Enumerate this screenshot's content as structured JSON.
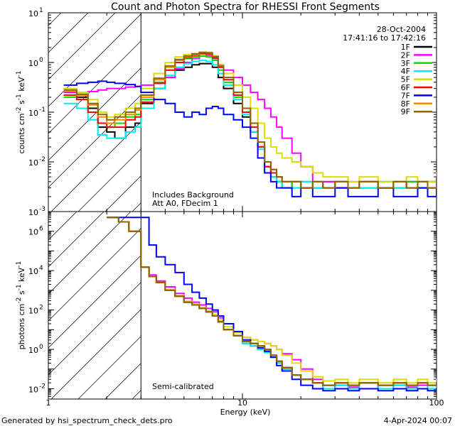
{
  "title": "Count and Photon Spectra for RHESSI Front Segments",
  "footer": {
    "left": "Generated by hsi_spectrum_check_dets.pro",
    "right": "4-Apr-2024 00:07"
  },
  "colors": {
    "1F": "#000000",
    "2F": "#ff00ff",
    "3F": "#00dd00",
    "4F": "#00eeee",
    "5F": "#dddd00",
    "6F": "#ff0000",
    "7F": "#0000ff",
    "8F": "#ff8800",
    "9F": "#886600"
  },
  "chart_data": [
    {
      "type": "line",
      "panel": "top",
      "title": "Count and Photon Spectra for RHESSI Front Segments",
      "xlabel": "Energy (keV)",
      "ylabel": "counts cm⁻² s⁻¹ keV⁻¹",
      "ylabel_parts": [
        "counts cm",
        "-2",
        " s",
        "-1",
        " keV",
        "-1"
      ],
      "xscale": "log",
      "yscale": "log",
      "xlim": [
        1,
        100
      ],
      "ylim": [
        0.001,
        10
      ],
      "yticks": [
        {
          "v": 10,
          "mant": "10",
          "exp": "1"
        },
        {
          "v": 1,
          "mant": "10",
          "exp": "0"
        },
        {
          "v": 0.1,
          "mant": "10",
          "exp": "-1"
        },
        {
          "v": 0.01,
          "mant": "10",
          "exp": "-2"
        },
        {
          "v": 0.001,
          "mant": "10",
          "exp": "-3"
        }
      ],
      "date": "28-Oct-2004",
      "time_range": "17:41:16 to 17:42:16",
      "annotations": [
        "Includes Background",
        "Att A0, FDecim  1"
      ],
      "hatched_below_keV": 3,
      "x": [
        1.2,
        1.4,
        1.6,
        1.8,
        2.0,
        2.2,
        2.5,
        2.8,
        3.0,
        3.5,
        4.0,
        4.5,
        5.0,
        5.5,
        6.0,
        6.5,
        7.0,
        7.5,
        8.0,
        9.0,
        10,
        11,
        12,
        13,
        14,
        15,
        16,
        18,
        20,
        23,
        26,
        30,
        35,
        40,
        50,
        60,
        70,
        80,
        90,
        100
      ],
      "series": [
        {
          "name": "1F",
          "values": [
            0.25,
            0.2,
            0.12,
            0.05,
            0.04,
            0.03,
            0.05,
            0.06,
            0.15,
            0.3,
            0.5,
            0.7,
            0.8,
            0.9,
            0.95,
            0.95,
            0.8,
            0.5,
            0.3,
            0.15,
            0.08,
            0.04,
            0.02,
            0.008,
            0.005,
            0.004,
            0.003,
            0.004,
            0.003,
            0.003,
            0.004,
            0.003,
            0.003,
            0.004,
            0.003,
            0.003,
            0.004,
            0.003,
            0.004,
            0.004
          ]
        },
        {
          "name": "2F",
          "values": [
            0.25,
            0.25,
            0.26,
            0.28,
            0.3,
            0.3,
            0.32,
            0.33,
            0.35,
            0.38,
            0.5,
            0.75,
            1.0,
            1.2,
            1.35,
            1.4,
            1.2,
            0.9,
            0.7,
            0.5,
            0.35,
            0.25,
            0.18,
            0.12,
            0.08,
            0.05,
            0.03,
            0.015,
            0.008,
            0.004,
            0.004,
            0.003,
            0.004,
            0.003,
            0.003,
            0.004,
            0.003,
            0.004,
            0.003,
            0.004
          ]
        },
        {
          "name": "3F",
          "values": [
            0.2,
            0.18,
            0.1,
            0.06,
            0.05,
            0.06,
            0.08,
            0.09,
            0.18,
            0.4,
            0.7,
            1.0,
            1.2,
            1.3,
            1.35,
            1.3,
            1.1,
            0.7,
            0.4,
            0.2,
            0.1,
            0.05,
            0.02,
            0.008,
            0.005,
            0.004,
            0.004,
            0.003,
            0.004,
            0.003,
            0.003,
            0.004,
            0.003,
            0.003,
            0.004,
            0.003,
            0.004,
            0.003,
            0.004,
            0.005
          ]
        },
        {
          "name": "4F",
          "values": [
            0.15,
            0.12,
            0.07,
            0.035,
            0.03,
            0.03,
            0.04,
            0.05,
            0.12,
            0.3,
            0.55,
            0.8,
            0.95,
            1.05,
            1.1,
            1.05,
            0.9,
            0.6,
            0.35,
            0.18,
            0.09,
            0.04,
            0.018,
            0.008,
            0.005,
            0.004,
            0.003,
            0.003,
            0.004,
            0.003,
            0.003,
            0.004,
            0.003,
            0.003,
            0.004,
            0.003,
            0.003,
            0.004,
            0.003,
            0.005
          ]
        },
        {
          "name": "5F",
          "values": [
            0.3,
            0.25,
            0.18,
            0.1,
            0.08,
            0.09,
            0.12,
            0.15,
            0.3,
            0.6,
            1.0,
            1.3,
            1.45,
            1.5,
            1.55,
            1.5,
            1.3,
            0.9,
            0.6,
            0.35,
            0.2,
            0.12,
            0.06,
            0.03,
            0.02,
            0.015,
            0.012,
            0.01,
            0.008,
            0.006,
            0.005,
            0.005,
            0.004,
            0.005,
            0.004,
            0.004,
            0.005,
            0.004,
            0.004,
            0.006
          ]
        },
        {
          "name": "6F",
          "values": [
            0.22,
            0.18,
            0.1,
            0.06,
            0.05,
            0.05,
            0.07,
            0.08,
            0.16,
            0.38,
            0.7,
            1.0,
            1.25,
            1.4,
            1.5,
            1.5,
            1.25,
            0.8,
            0.45,
            0.22,
            0.1,
            0.05,
            0.02,
            0.008,
            0.006,
            0.005,
            0.004,
            0.004,
            0.003,
            0.004,
            0.003,
            0.004,
            0.003,
            0.004,
            0.003,
            0.004,
            0.003,
            0.004,
            0.003,
            0.004
          ]
        },
        {
          "name": "7F",
          "values": [
            0.35,
            0.38,
            0.4,
            0.42,
            0.4,
            0.38,
            0.36,
            0.33,
            0.25,
            0.18,
            0.15,
            0.1,
            0.08,
            0.1,
            0.09,
            0.12,
            0.13,
            0.12,
            0.09,
            0.07,
            0.05,
            0.03,
            0.012,
            0.006,
            0.004,
            0.003,
            0.003,
            0.002,
            0.003,
            0.002,
            0.002,
            0.003,
            0.002,
            0.002,
            0.003,
            0.002,
            0.002,
            0.003,
            0.002,
            0.003
          ]
        },
        {
          "name": "8F",
          "values": [
            0.27,
            0.22,
            0.14,
            0.08,
            0.06,
            0.07,
            0.09,
            0.11,
            0.2,
            0.45,
            0.8,
            1.1,
            1.3,
            1.45,
            1.6,
            1.6,
            1.35,
            0.85,
            0.5,
            0.25,
            0.12,
            0.06,
            0.025,
            0.01,
            0.007,
            0.005,
            0.004,
            0.004,
            0.003,
            0.004,
            0.003,
            0.004,
            0.003,
            0.004,
            0.003,
            0.004,
            0.003,
            0.004,
            0.003,
            0.005
          ]
        },
        {
          "name": "9F",
          "values": [
            0.28,
            0.23,
            0.15,
            0.09,
            0.07,
            0.08,
            0.1,
            0.12,
            0.22,
            0.48,
            0.85,
            1.15,
            1.35,
            1.5,
            1.6,
            1.55,
            1.3,
            0.85,
            0.5,
            0.25,
            0.12,
            0.06,
            0.025,
            0.01,
            0.007,
            0.005,
            0.004,
            0.004,
            0.003,
            0.004,
            0.003,
            0.004,
            0.003,
            0.004,
            0.003,
            0.004,
            0.003,
            0.004,
            0.003,
            0.005
          ]
        }
      ]
    },
    {
      "type": "line",
      "panel": "bottom",
      "xlabel": "Energy (keV)",
      "ylabel": "photons cm⁻² s⁻¹ keV⁻¹",
      "ylabel_parts": [
        "photons cm",
        "-2",
        " s",
        "-1",
        " keV",
        "-1"
      ],
      "xscale": "log",
      "yscale": "log",
      "xlim": [
        1,
        100
      ],
      "ylim": [
        0.003,
        10000000
      ],
      "yticks": [
        {
          "v": 1000000,
          "mant": "10",
          "exp": "6"
        },
        {
          "v": 10000,
          "mant": "10",
          "exp": "4"
        },
        {
          "v": 100,
          "mant": "10",
          "exp": "2"
        },
        {
          "v": 1,
          "mant": "10",
          "exp": "0"
        },
        {
          "v": 0.01,
          "mant": "10",
          "exp": "-2"
        }
      ],
      "annotations": [
        "Semi-calibrated"
      ],
      "hatched_below_keV": 3,
      "x": [
        2.0,
        2.3,
        2.6,
        3.0,
        3.3,
        3.6,
        4.0,
        4.5,
        5.0,
        5.5,
        6.0,
        6.5,
        7.0,
        7.5,
        8.0,
        9.0,
        10,
        11,
        12,
        13,
        14,
        15,
        16,
        18,
        20,
        23,
        26,
        30,
        35,
        40,
        50,
        60,
        70,
        80,
        90,
        100
      ],
      "series": [
        {
          "name": "1F",
          "values": [
            5000000,
            3000000,
            1000000,
            15000,
            5000,
            2500,
            1000,
            500,
            250,
            180,
            120,
            80,
            50,
            25,
            10,
            5,
            2,
            1.5,
            1,
            0.7,
            0.4,
            0.2,
            0.1,
            0.05,
            0.03,
            0.02,
            0.01,
            0.015,
            0.01,
            0.02,
            0.01,
            0.015,
            0.01,
            0.02,
            0.01,
            0.015
          ]
        },
        {
          "name": "2F",
          "values": [
            5000000,
            3000000,
            1000000,
            15000,
            6000,
            3000,
            1500,
            700,
            400,
            250,
            180,
            120,
            80,
            40,
            20,
            8,
            4,
            3,
            2.5,
            2,
            1.5,
            1,
            0.6,
            0.3,
            0.1,
            0.03,
            0.015,
            0.01,
            0.012,
            0.01,
            0.015,
            0.01,
            0.012,
            0.015,
            0.01,
            0.02
          ]
        },
        {
          "name": "3F",
          "values": [
            5000000,
            3000000,
            1000000,
            15000,
            5000,
            2500,
            1000,
            500,
            250,
            180,
            120,
            80,
            50,
            25,
            10,
            5,
            2.5,
            2,
            1.5,
            1,
            0.5,
            0.25,
            0.12,
            0.05,
            0.03,
            0.02,
            0.015,
            0.02,
            0.015,
            0.02,
            0.015,
            0.02,
            0.015,
            0.02,
            0.015,
            0.02
          ]
        },
        {
          "name": "4F",
          "values": [
            5000000,
            3000000,
            1000000,
            15000,
            5000,
            2500,
            1000,
            500,
            250,
            180,
            120,
            80,
            50,
            25,
            10,
            5,
            2,
            1.5,
            1,
            0.7,
            0.4,
            0.2,
            0.1,
            0.05,
            0.03,
            0.02,
            0.01,
            0.015,
            0.01,
            0.02,
            0.01,
            0.015,
            0.01,
            0.02,
            0.01,
            0.02
          ]
        },
        {
          "name": "5F",
          "values": [
            5000000,
            3000000,
            1000000,
            15000,
            5000,
            2500,
            1100,
            550,
            280,
            200,
            130,
            90,
            60,
            30,
            14,
            7,
            4,
            3,
            2.5,
            2,
            1.5,
            1,
            0.5,
            0.2,
            0.08,
            0.04,
            0.025,
            0.03,
            0.02,
            0.03,
            0.02,
            0.03,
            0.02,
            0.03,
            0.02,
            0.03
          ]
        },
        {
          "name": "6F",
          "values": [
            5000000,
            3000000,
            1000000,
            15000,
            5000,
            2500,
            1000,
            500,
            250,
            180,
            120,
            80,
            50,
            25,
            10,
            5,
            2.5,
            2,
            1.5,
            1,
            0.5,
            0.25,
            0.12,
            0.05,
            0.03,
            0.02,
            0.015,
            0.02,
            0.015,
            0.02,
            0.015,
            0.02,
            0.015,
            0.02,
            0.015,
            0.02
          ]
        },
        {
          "name": "7F",
          "values": [
            5000000,
            5000000,
            5000000,
            5000000,
            200000,
            50000,
            20000,
            8000,
            2000,
            800,
            400,
            200,
            100,
            50,
            20,
            8,
            3,
            2,
            1.2,
            0.8,
            0.4,
            0.15,
            0.08,
            0.03,
            0.015,
            0.01,
            0.008,
            0.01,
            0.008,
            0.01,
            0.008,
            0.01,
            0.008,
            0.01,
            0.008,
            0.01
          ]
        },
        {
          "name": "8F",
          "values": [
            5000000,
            3000000,
            1000000,
            15000,
            5000,
            2500,
            1000,
            500,
            250,
            180,
            120,
            80,
            50,
            25,
            10,
            5,
            2.5,
            2,
            1.5,
            1,
            0.5,
            0.25,
            0.12,
            0.05,
            0.03,
            0.02,
            0.015,
            0.02,
            0.015,
            0.02,
            0.015,
            0.02,
            0.015,
            0.02,
            0.015,
            0.02
          ]
        },
        {
          "name": "9F",
          "values": [
            5000000,
            3000000,
            1000000,
            15000,
            5000,
            2500,
            1000,
            500,
            250,
            180,
            120,
            80,
            50,
            25,
            10,
            5,
            2.5,
            2,
            1.5,
            1,
            0.5,
            0.25,
            0.12,
            0.05,
            0.03,
            0.02,
            0.015,
            0.02,
            0.015,
            0.02,
            0.015,
            0.02,
            0.015,
            0.02,
            0.015,
            0.02
          ]
        }
      ]
    }
  ],
  "xticks": [
    {
      "v": 1,
      "label": "1"
    },
    {
      "v": 10,
      "label": "10"
    },
    {
      "v": 100,
      "label": "100"
    }
  ]
}
